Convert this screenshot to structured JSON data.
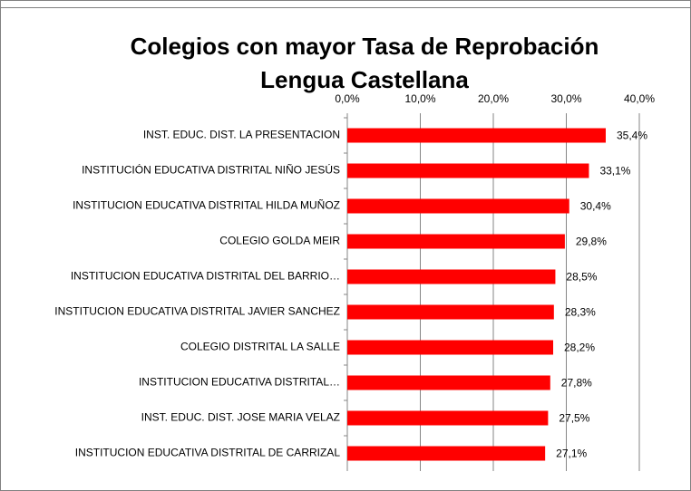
{
  "chart_data": {
    "type": "bar",
    "orientation": "horizontal",
    "title": [
      "Colegios con mayor Tasa de Reprobación",
      "Lengua Castellana"
    ],
    "categories": [
      "INST. EDUC. DIST. LA PRESENTACION",
      "INSTITUCIÓN EDUCATIVA DISTRITAL NIÑO JESÚS",
      "INSTITUCION EDUCATIVA DISTRITAL HILDA MUÑOZ",
      "COLEGIO GOLDA MEIR",
      "INSTITUCION EDUCATIVA DISTRITAL DEL BARRIO…",
      "INSTITUCION EDUCATIVA DISTRITAL JAVIER SANCHEZ",
      "COLEGIO DISTRITAL LA SALLE",
      "INSTITUCION EDUCATIVA DISTRITAL…",
      "INST. EDUC. DIST. JOSE MARIA VELAZ",
      "INSTITUCION EDUCATIVA DISTRITAL DE CARRIZAL"
    ],
    "values": [
      35.4,
      33.1,
      30.4,
      29.8,
      28.5,
      28.3,
      28.2,
      27.8,
      27.5,
      27.1
    ],
    "value_labels": [
      "35,4%",
      "33,1%",
      "30,4%",
      "29,8%",
      "28,5%",
      "28,3%",
      "28,2%",
      "27,8%",
      "27,5%",
      "27,1%"
    ],
    "color": "#ff0000",
    "xlim": [
      0,
      40
    ],
    "xticks": [
      {
        "value": 0,
        "label": "0,0%"
      },
      {
        "value": 10,
        "label": "10,0%"
      },
      {
        "value": 20,
        "label": "20,0%"
      },
      {
        "value": 30,
        "label": "30,0%"
      },
      {
        "value": 40,
        "label": "40,0%"
      }
    ],
    "grid": true
  }
}
